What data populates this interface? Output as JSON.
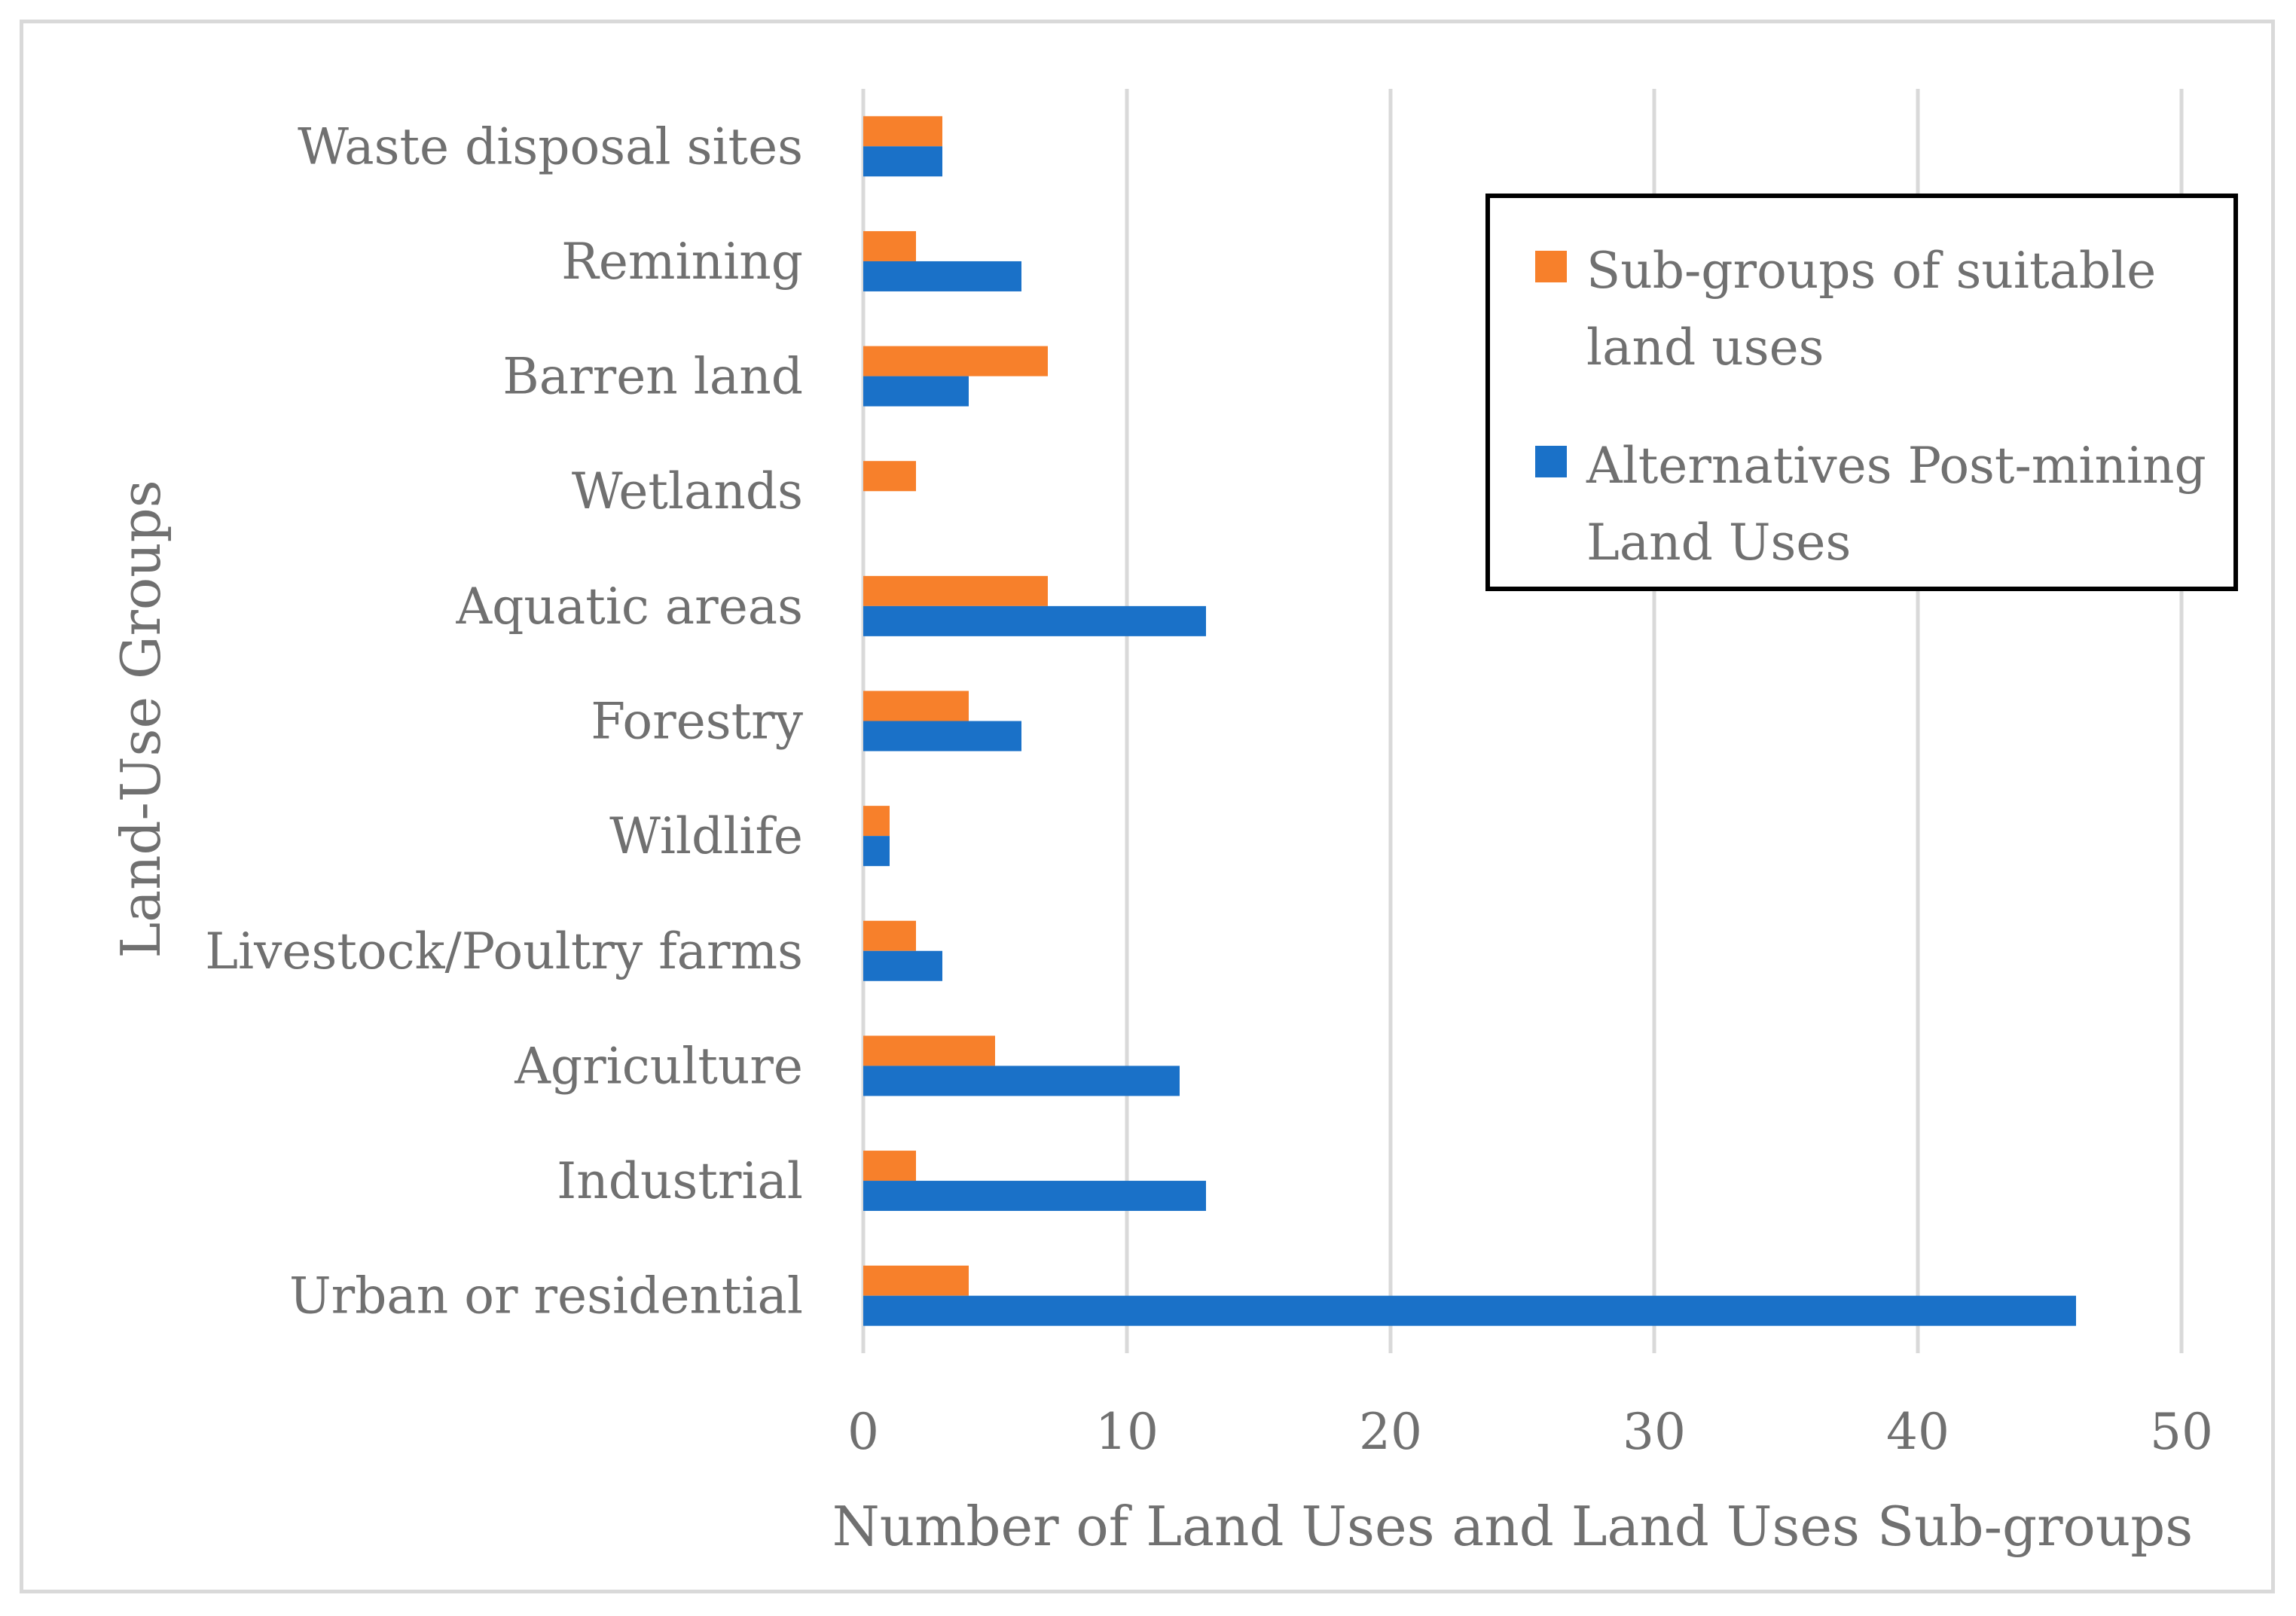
{
  "chart_data": {
    "type": "bar",
    "orientation": "horizontal",
    "title": "",
    "xlabel": "Number of Land Uses and Land Uses Sub-groups",
    "ylabel": "Land-Use Groups",
    "xlim": [
      0,
      50
    ],
    "xticks": [
      0,
      10,
      20,
      30,
      40,
      50
    ],
    "grid": true,
    "legend_position": "top-right",
    "categories": [
      "Urban or residential",
      "Industrial",
      "Agriculture",
      "Livestock/Poultry farms",
      "Wildlife ",
      "Forestry",
      "Aquatic areas",
      "Wetlands",
      "Barren land",
      "Remining ",
      "Waste disposal sites"
    ],
    "series": [
      {
        "name": "Sub-groups of suitable land uses",
        "color": "#f7802b",
        "values": [
          4,
          2,
          5,
          2,
          1,
          4,
          7,
          2,
          7,
          2,
          3
        ]
      },
      {
        "name": "Alternatives Post-mining Land Uses",
        "color": "#1a71c8",
        "values": [
          46,
          13,
          12,
          3,
          1,
          6,
          13,
          0,
          4,
          6,
          3
        ]
      }
    ]
  }
}
